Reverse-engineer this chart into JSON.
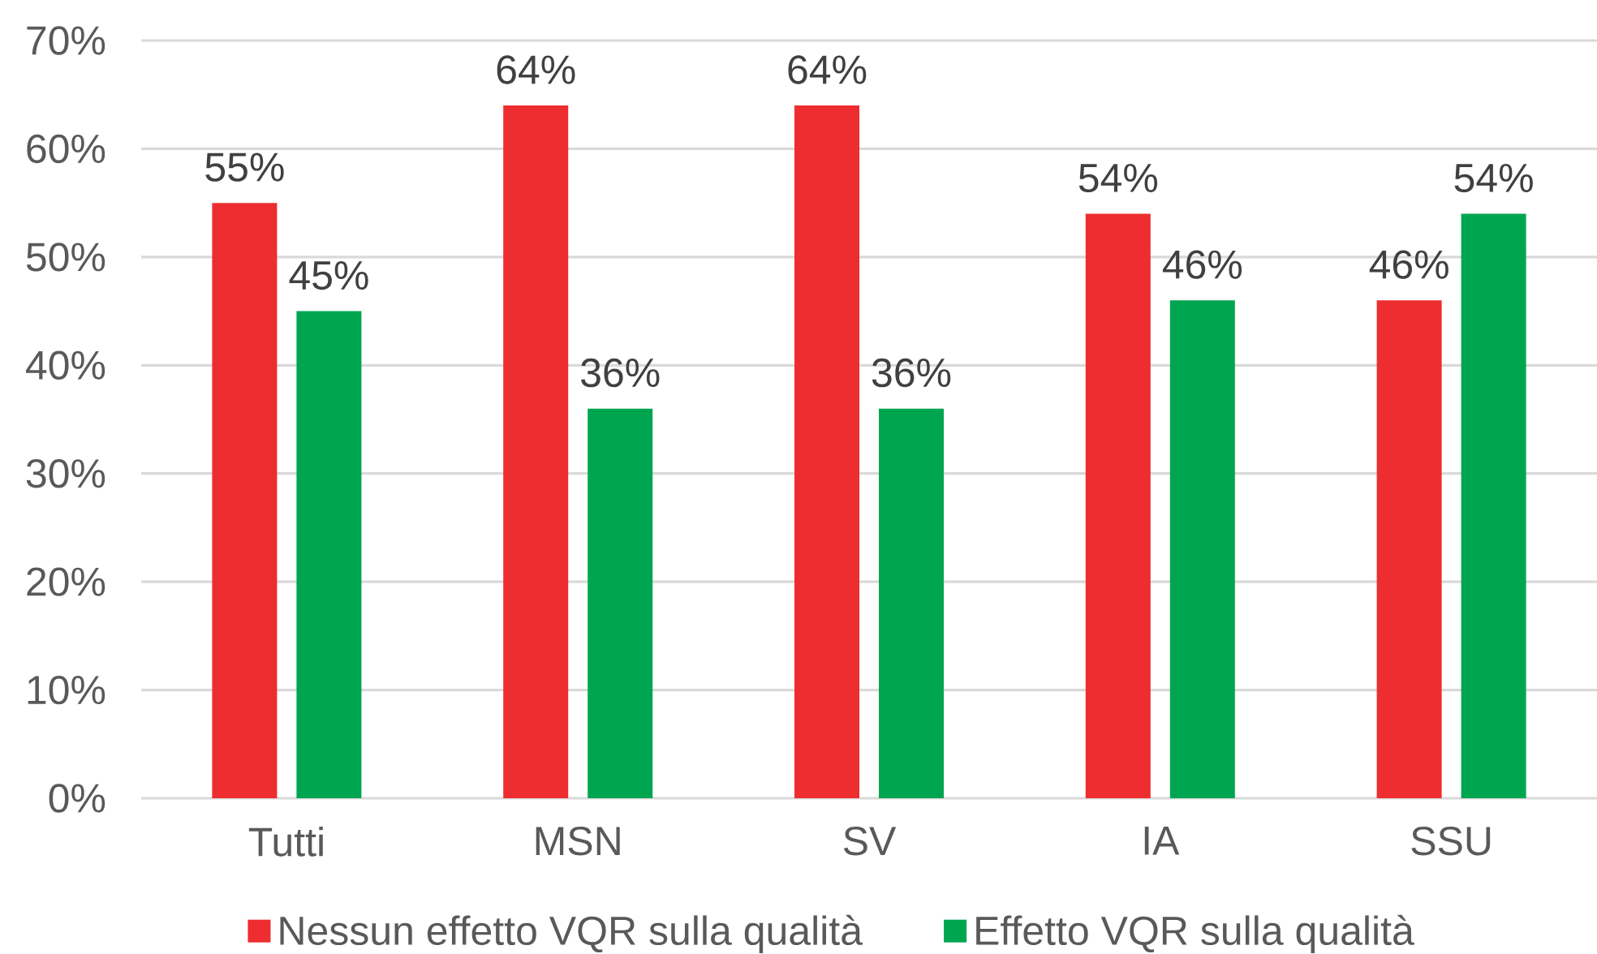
{
  "chart_data": {
    "type": "bar",
    "categories": [
      "Tutti",
      "MSN",
      "SV",
      "IA",
      "SSU"
    ],
    "series": [
      {
        "name": "Nessun effetto VQR sulla qualità",
        "color": "#ED2D2F",
        "values": [
          55,
          64,
          64,
          54,
          46
        ],
        "value_labels": [
          "55%",
          "64%",
          "64%",
          "54%",
          "46%"
        ]
      },
      {
        "name": "Effetto VQR sulla qualità",
        "color": "#00A550",
        "values": [
          45,
          36,
          36,
          46,
          54
        ],
        "value_labels": [
          "45%",
          "36%",
          "36%",
          "46%",
          "54%"
        ]
      }
    ],
    "ylim": [
      0,
      70
    ],
    "yticks": [
      {
        "value": 0,
        "label": "0%"
      },
      {
        "value": 10,
        "label": "10%"
      },
      {
        "value": 20,
        "label": "20%"
      },
      {
        "value": 30,
        "label": "30%"
      },
      {
        "value": 40,
        "label": "40%"
      },
      {
        "value": 50,
        "label": "50%"
      },
      {
        "value": 60,
        "label": "60%"
      },
      {
        "value": 70,
        "label": "70%"
      }
    ],
    "grid": "y",
    "legend": "bottom"
  }
}
